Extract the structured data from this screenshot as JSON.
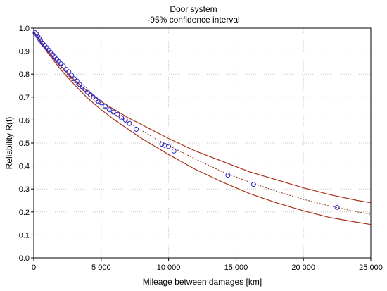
{
  "chart_data": {
    "type": "scatter",
    "title": "Door system",
    "legend_label": "95% confidence interval",
    "legend_prefix": "-",
    "xlabel": "Mileage between damages [km]",
    "ylabel": "Reliability R(t)",
    "xlim": [
      0,
      25000
    ],
    "ylim": [
      0,
      1.0
    ],
    "grid": true,
    "x_ticks": [
      0,
      5000,
      10000,
      15000,
      20000,
      25000
    ],
    "x_tick_labels": [
      "0",
      "5 000",
      "10 000",
      "15 000",
      "20 000",
      "25 000"
    ],
    "y_ticks": [
      0.0,
      0.1,
      0.2,
      0.3,
      0.4,
      0.5,
      0.6,
      0.7,
      0.8,
      0.9,
      1.0
    ],
    "y_tick_labels": [
      "0.0",
      "0.1",
      "0.2",
      "0.3",
      "0.4",
      "0.5",
      "0.6",
      "0.7",
      "0.8",
      "0.9",
      "1.0"
    ],
    "series": [
      {
        "kind": "fitted-line",
        "x": [
          0,
          1000,
          2000,
          3000,
          4000,
          5000,
          6000,
          7000,
          8000,
          9000,
          10000,
          12000,
          14000,
          16000,
          18000,
          20000,
          22000,
          24000,
          25000
        ],
        "y": [
          0.985,
          0.9,
          0.83,
          0.765,
          0.71,
          0.665,
          0.625,
          0.59,
          0.555,
          0.52,
          0.49,
          0.43,
          0.375,
          0.33,
          0.29,
          0.255,
          0.225,
          0.2,
          0.19
        ]
      },
      {
        "kind": "upper-confidence",
        "x": [
          0,
          1000,
          2000,
          3000,
          4000,
          5000,
          6000,
          7000,
          8000,
          9000,
          10000,
          12000,
          14000,
          16000,
          18000,
          20000,
          22000,
          24000,
          25000
        ],
        "y": [
          0.985,
          0.905,
          0.835,
          0.775,
          0.725,
          0.68,
          0.645,
          0.61,
          0.58,
          0.55,
          0.52,
          0.465,
          0.42,
          0.375,
          0.34,
          0.305,
          0.275,
          0.25,
          0.24
        ]
      },
      {
        "kind": "lower-confidence",
        "x": [
          0,
          1000,
          2000,
          3000,
          4000,
          5000,
          6000,
          7000,
          8000,
          9000,
          10000,
          12000,
          14000,
          16000,
          18000,
          20000,
          22000,
          24000,
          25000
        ],
        "y": [
          0.985,
          0.895,
          0.82,
          0.755,
          0.695,
          0.645,
          0.6,
          0.56,
          0.52,
          0.485,
          0.45,
          0.385,
          0.33,
          0.28,
          0.24,
          0.205,
          0.175,
          0.155,
          0.145
        ]
      },
      {
        "kind": "observations",
        "x": [
          100,
          200,
          300,
          400,
          500,
          650,
          800,
          950,
          1100,
          1250,
          1400,
          1550,
          1700,
          1850,
          2000,
          2200,
          2400,
          2600,
          2800,
          3000,
          3200,
          3400,
          3600,
          3800,
          4000,
          4200,
          4400,
          4600,
          4800,
          5000,
          5300,
          5600,
          5900,
          6200,
          6500,
          6800,
          7100,
          7600,
          9500,
          9700,
          10000,
          10400,
          14400,
          16300,
          22500
        ],
        "y": [
          0.98,
          0.975,
          0.965,
          0.955,
          0.945,
          0.935,
          0.925,
          0.915,
          0.905,
          0.895,
          0.885,
          0.875,
          0.865,
          0.855,
          0.845,
          0.835,
          0.82,
          0.81,
          0.795,
          0.78,
          0.77,
          0.755,
          0.745,
          0.735,
          0.72,
          0.71,
          0.7,
          0.69,
          0.68,
          0.675,
          0.66,
          0.645,
          0.635,
          0.625,
          0.61,
          0.6,
          0.585,
          0.56,
          0.495,
          0.49,
          0.485,
          0.465,
          0.36,
          0.32,
          0.22
        ]
      }
    ],
    "colors": {
      "fit_line": "#8b2a10",
      "confidence": "#a83218",
      "markers": "#2a2ad0",
      "grid": "#c8c8c8",
      "axis": "#000000"
    }
  }
}
